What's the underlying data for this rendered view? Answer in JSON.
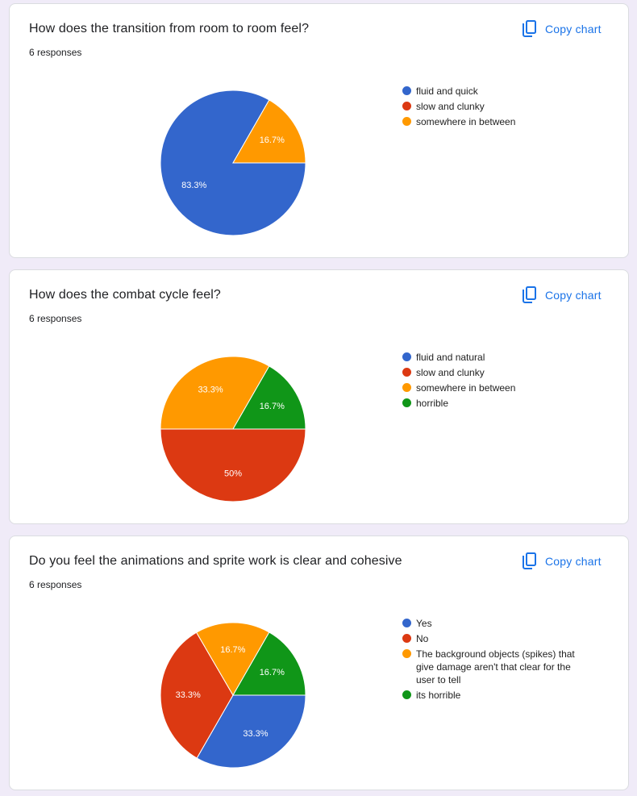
{
  "copy_label": "Copy chart",
  "colors": {
    "accent": "#1a73e8",
    "blue": "#3366cc",
    "red": "#dc3912",
    "orange": "#ff9900",
    "green": "#109618"
  },
  "cards": [
    {
      "title": "How does the transition from room to room feel?",
      "responses": "6 responses",
      "chart_data": {
        "type": "pie",
        "title": "How does the transition from room to room feel?",
        "categories": [
          "fluid and quick",
          "slow and clunky",
          "somewhere in between"
        ],
        "values": [
          83.3,
          0,
          16.7
        ],
        "labels": [
          "83.3%",
          "",
          "16.7%"
        ],
        "colors": [
          "#3366cc",
          "#dc3912",
          "#ff9900"
        ],
        "legend": "right"
      }
    },
    {
      "title": "How does the combat cycle feel?",
      "responses": "6 responses",
      "chart_data": {
        "type": "pie",
        "title": "How does the combat cycle feel?",
        "categories": [
          "fluid and natural",
          "slow and clunky",
          "somewhere in between",
          "horrible"
        ],
        "values": [
          0,
          50,
          33.3,
          16.7
        ],
        "labels": [
          "",
          "50%",
          "33.3%",
          "16.7%"
        ],
        "colors": [
          "#3366cc",
          "#dc3912",
          "#ff9900",
          "#109618"
        ],
        "legend": "right"
      }
    },
    {
      "title": "Do you feel the animations and sprite work is clear and cohesive",
      "responses": "6 responses",
      "chart_data": {
        "type": "pie",
        "title": "Do you feel the animations and sprite work is clear and cohesive",
        "categories": [
          "Yes",
          "No",
          "The background objects (spikes) that give damage aren't that clear for the user to tell",
          "its horrible"
        ],
        "values": [
          33.3,
          33.3,
          16.7,
          16.7
        ],
        "labels": [
          "33.3%",
          "33.3%",
          "16.7%",
          "16.7%"
        ],
        "colors": [
          "#3366cc",
          "#dc3912",
          "#ff9900",
          "#109618"
        ],
        "legend": "right"
      }
    }
  ]
}
